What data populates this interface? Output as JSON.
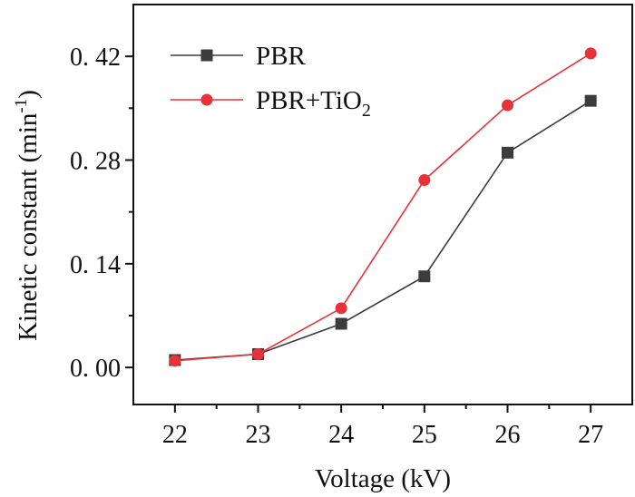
{
  "chart_data": {
    "type": "line",
    "title": "",
    "xlabel": "Voltage (kV)",
    "ylabel": {
      "main": "Kinetic constant (min",
      "sup": "-1",
      "end": ")"
    },
    "x": [
      22,
      23,
      24,
      25,
      26,
      27
    ],
    "xticks": [
      "22",
      "23",
      "24",
      "25",
      "26",
      "27"
    ],
    "xlim": [
      21.5,
      27.5
    ],
    "ylim": [
      -0.05,
      0.49
    ],
    "yticks": [
      {
        "value": 0.0,
        "label": "0. 00"
      },
      {
        "value": 0.14,
        "label": "0. 14"
      },
      {
        "value": 0.28,
        "label": "0. 28"
      },
      {
        "value": 0.42,
        "label": "0. 42"
      }
    ],
    "series": [
      {
        "name": "PBR",
        "legend": {
          "main": "PBR",
          "sub": ""
        },
        "marker": "square",
        "color": "#3c3c3c",
        "values": [
          0.01,
          0.018,
          0.059,
          0.123,
          0.29,
          0.36
        ]
      },
      {
        "name": "PBR+TiO2",
        "legend": {
          "main": "PBR+TiO",
          "sub": "2"
        },
        "marker": "circle",
        "color": "#e8323a",
        "values": [
          0.009,
          0.018,
          0.08,
          0.253,
          0.354,
          0.424
        ]
      }
    ],
    "legend_position": "top-left",
    "grid": false
  }
}
